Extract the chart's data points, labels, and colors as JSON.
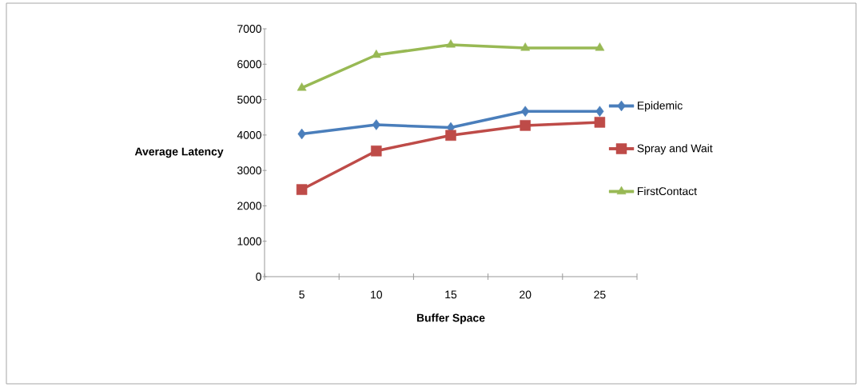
{
  "chart_data": {
    "type": "line",
    "xlabel": "Buffer Space",
    "ylabel": "Average Latency",
    "categories": [
      "5",
      "10",
      "15",
      "20",
      "25"
    ],
    "series": [
      {
        "name": "Epidemic",
        "color": "#4a7ebb",
        "marker": "diamond",
        "values": [
          4030,
          4290,
          4210,
          4670,
          4670
        ]
      },
      {
        "name": "Spray and Wait",
        "color": "#be4b48",
        "marker": "square",
        "values": [
          2460,
          3550,
          3990,
          4270,
          4360
        ]
      },
      {
        "name": "FirstContact",
        "color": "#98b954",
        "marker": "triangle",
        "values": [
          5330,
          6260,
          6550,
          6460,
          6460
        ]
      }
    ],
    "ylim": [
      0,
      7000
    ],
    "yticks": [
      0,
      1000,
      2000,
      3000,
      4000,
      5000,
      6000,
      7000
    ],
    "grid": false,
    "legend": "right",
    "line_style": "solid"
  }
}
